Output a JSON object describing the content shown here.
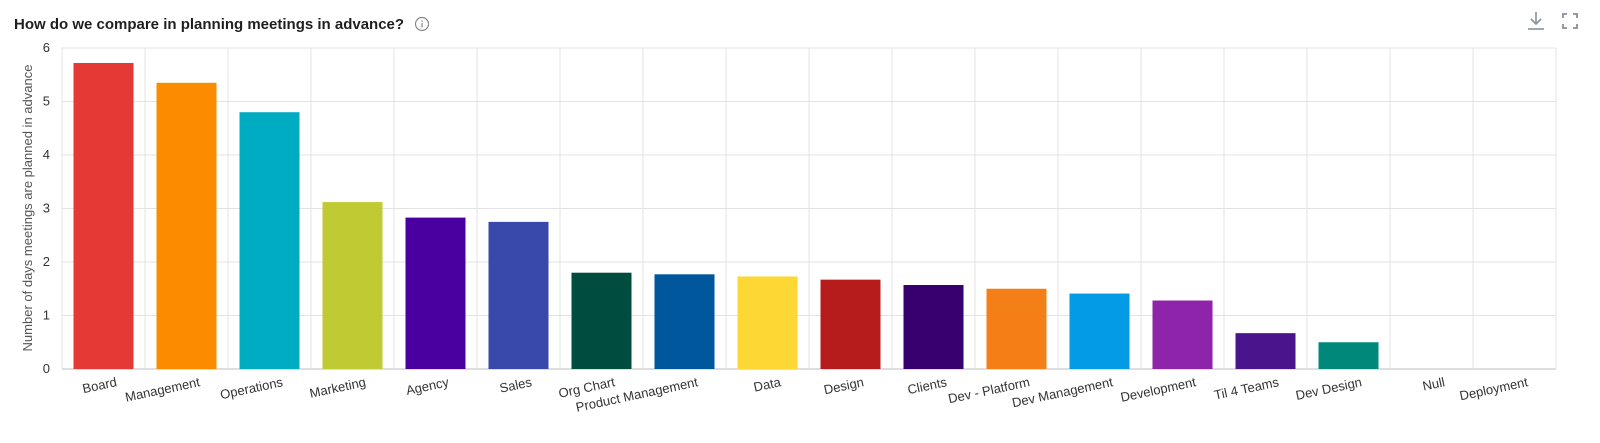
{
  "header": {
    "title": "How do we compare in planning meetings in advance?",
    "info_icon": "info-icon"
  },
  "toolbar": {
    "download_icon": "download-icon",
    "fullscreen_icon": "fullscreen-icon"
  },
  "chart_data": {
    "type": "bar",
    "title": "How do we compare in planning meetings in advance?",
    "xlabel": "",
    "ylabel": "Number of days meetings are planned in advance",
    "ylim": [
      0,
      6
    ],
    "yticks": [
      0,
      1,
      2,
      3,
      4,
      5,
      6
    ],
    "grid": true,
    "categories": [
      "Board",
      "Management",
      "Operations",
      "Marketing",
      "Agency",
      "Sales",
      "Org Chart",
      "Product Management",
      "Data",
      "Design",
      "Clients",
      "Dev - Platform",
      "Dev Management",
      "Development",
      "Til 4 Teams",
      "Dev Design",
      "Null",
      "Deployment"
    ],
    "values": [
      5.72,
      5.35,
      4.8,
      3.12,
      2.83,
      2.75,
      1.8,
      1.77,
      1.73,
      1.67,
      1.57,
      1.5,
      1.41,
      1.28,
      0.67,
      0.5,
      0,
      0
    ],
    "colors": [
      "#e53935",
      "#fb8c00",
      "#00acc1",
      "#c0ca33",
      "#4a00a0",
      "#3949ab",
      "#004d40",
      "#01579b",
      "#fdd835",
      "#b71c1c",
      "#37006e",
      "#f57f17",
      "#039be5",
      "#8e24aa",
      "#4a148c",
      "#00897b",
      "#9e9e9e",
      "#9e9e9e"
    ]
  }
}
